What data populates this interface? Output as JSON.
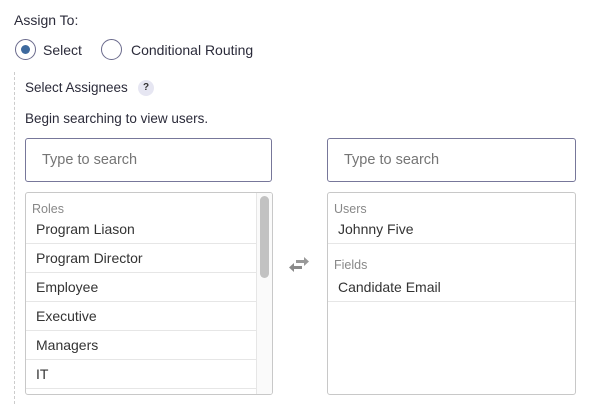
{
  "assign_label": "Assign To:",
  "radios": [
    {
      "label": "Select",
      "selected": true
    },
    {
      "label": "Conditional Routing",
      "selected": false
    }
  ],
  "assignees_label": "Select Assignees",
  "help_icon": "?",
  "hint": "Begin searching to view users.",
  "left_search": {
    "placeholder": "Type to search",
    "value": ""
  },
  "right_search": {
    "placeholder": "Type to search",
    "value": ""
  },
  "left_list": {
    "group": "Roles",
    "items": [
      "Program Liason",
      "Program Director",
      "Employee",
      "Executive",
      "Managers",
      "IT"
    ]
  },
  "right_list": {
    "groups": [
      {
        "label": "Users",
        "items": [
          "Johnny Five"
        ]
      },
      {
        "label": "Fields",
        "items": [
          "Candidate Email"
        ]
      }
    ]
  },
  "colors": {
    "accent": "#3e6a9e",
    "border": "#77779a"
  }
}
